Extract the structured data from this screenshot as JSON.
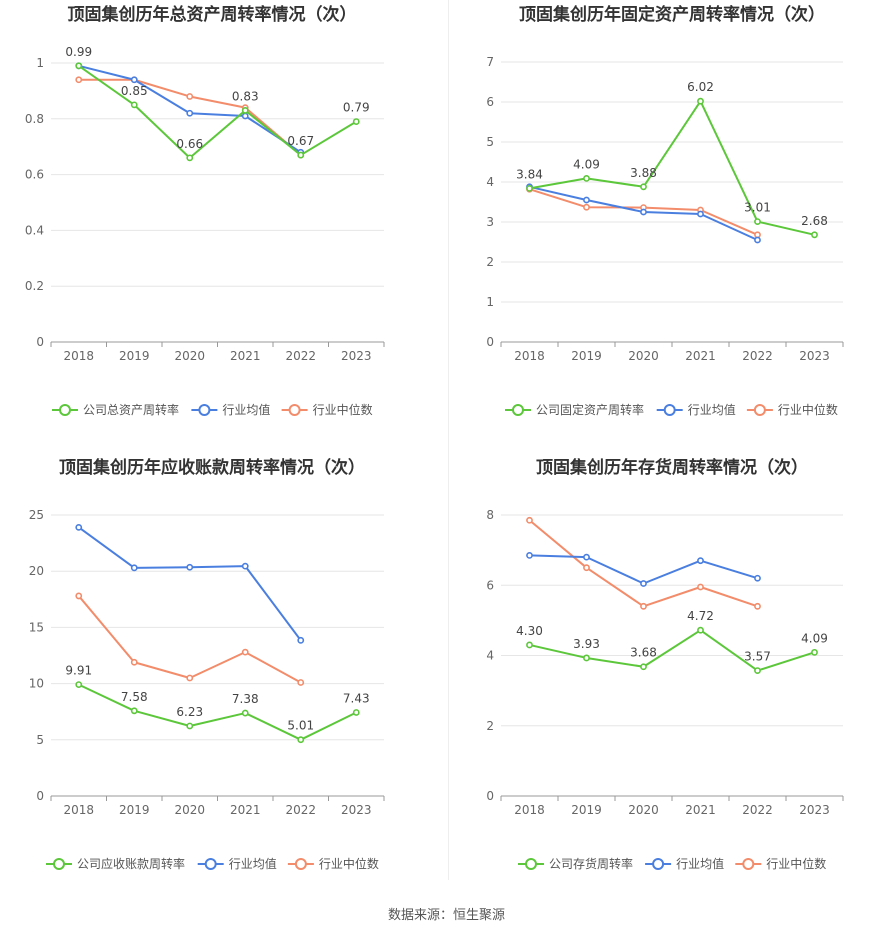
{
  "footer": "数据来源：恒生聚源",
  "colors": {
    "company": "#5cc73a",
    "avg": "#4a7fe0",
    "median": "#f28c6a",
    "grid": "#e6e6e6",
    "axis": "#999999"
  },
  "chart_data": [
    {
      "type": "line",
      "title": "顶固集创历年总资产周转率情况（次）",
      "x": [
        "2018",
        "2019",
        "2020",
        "2021",
        "2022",
        "2023"
      ],
      "yticks": [
        "0",
        "0.2",
        "0.4",
        "0.6",
        "0.8",
        "1"
      ],
      "ylim": [
        0,
        1
      ],
      "grid": true,
      "legend": "bottom",
      "series": [
        {
          "name": "公司总资产周转率",
          "color": "#5cc73a",
          "values": [
            0.99,
            0.85,
            0.66,
            0.83,
            0.67,
            0.79
          ],
          "labels": [
            "0.99",
            "0.85",
            "0.66",
            "0.83",
            "0.67",
            "0.79"
          ]
        },
        {
          "name": "行业均值",
          "color": "#4a7fe0",
          "values": [
            0.99,
            0.94,
            0.82,
            0.81,
            0.68,
            null
          ]
        },
        {
          "name": "行业中位数",
          "color": "#f28c6a",
          "values": [
            0.94,
            0.94,
            0.88,
            0.84,
            0.67,
            null
          ]
        }
      ]
    },
    {
      "type": "line",
      "title": "顶固集创历年固定资产周转率情况（次）",
      "x": [
        "2018",
        "2019",
        "2020",
        "2021",
        "2022",
        "2023"
      ],
      "yticks": [
        "0",
        "1",
        "2",
        "3",
        "4",
        "5",
        "6",
        "7"
      ],
      "ylim": [
        0,
        7
      ],
      "grid": true,
      "legend": "bottom",
      "series": [
        {
          "name": "公司固定资产周转率",
          "color": "#5cc73a",
          "values": [
            3.84,
            4.09,
            3.88,
            6.02,
            3.01,
            2.68
          ],
          "labels": [
            "3.84",
            "4.09",
            "3.88",
            "6.02",
            "3.01",
            "2.68"
          ]
        },
        {
          "name": "行业均值",
          "color": "#4a7fe0",
          "values": [
            3.88,
            3.55,
            3.25,
            3.2,
            2.55,
            null
          ]
        },
        {
          "name": "行业中位数",
          "color": "#f28c6a",
          "values": [
            3.82,
            3.37,
            3.36,
            3.3,
            2.68,
            null
          ]
        }
      ]
    },
    {
      "type": "line",
      "title": "顶固集创历年应收账款周转率情况（次）",
      "x": [
        "2018",
        "2019",
        "2020",
        "2021",
        "2022",
        "2023"
      ],
      "yticks": [
        "0",
        "5",
        "10",
        "15",
        "20",
        "25"
      ],
      "ylim": [
        0,
        25
      ],
      "grid": true,
      "legend": "bottom",
      "series": [
        {
          "name": "公司应收账款周转率",
          "color": "#5cc73a",
          "values": [
            9.91,
            7.58,
            6.23,
            7.38,
            5.01,
            7.43
          ],
          "labels": [
            "9.91",
            "7.58",
            "6.23",
            "7.38",
            "5.01",
            "7.43"
          ]
        },
        {
          "name": "行业均值",
          "color": "#4a7fe0",
          "values": [
            23.9,
            20.3,
            20.35,
            20.45,
            13.85,
            null
          ]
        },
        {
          "name": "行业中位数",
          "color": "#f28c6a",
          "values": [
            17.8,
            11.9,
            10.5,
            12.8,
            10.1,
            null
          ]
        }
      ]
    },
    {
      "type": "line",
      "title": "顶固集创历年存货周转率情况（次）",
      "x": [
        "2018",
        "2019",
        "2020",
        "2021",
        "2022",
        "2023"
      ],
      "yticks": [
        "0",
        "2",
        "4",
        "6",
        "8"
      ],
      "ylim": [
        0,
        8
      ],
      "grid": true,
      "legend": "bottom",
      "series": [
        {
          "name": "公司存货周转率",
          "color": "#5cc73a",
          "values": [
            4.3,
            3.93,
            3.68,
            4.72,
            3.57,
            4.09
          ],
          "labels": [
            "4.30",
            "3.93",
            "3.68",
            "4.72",
            "3.57",
            "4.09"
          ]
        },
        {
          "name": "行业均值",
          "color": "#4a7fe0",
          "values": [
            6.85,
            6.8,
            6.05,
            6.7,
            6.2,
            null
          ]
        },
        {
          "name": "行业中位数",
          "color": "#f28c6a",
          "values": [
            7.85,
            6.5,
            5.4,
            5.95,
            5.4,
            null
          ]
        }
      ]
    }
  ]
}
